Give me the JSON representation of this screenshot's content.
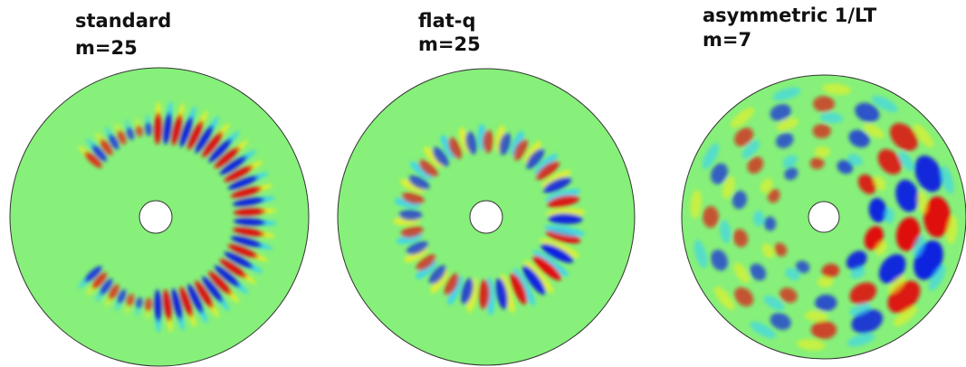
{
  "panels": [
    {
      "title": "standard",
      "subtitle": "m=25"
    },
    {
      "title": "flat-q",
      "subtitle": "m=25"
    },
    {
      "title": "asymmetric 1/LT",
      "subtitle": "m=7"
    }
  ]
}
